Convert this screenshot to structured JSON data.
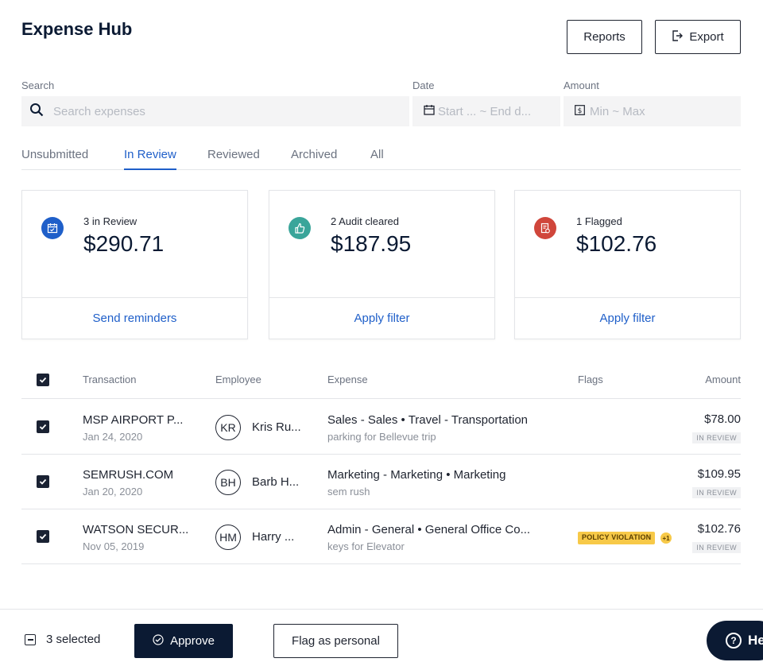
{
  "header": {
    "title": "Expense Hub",
    "reports_label": "Reports",
    "export_label": "Export"
  },
  "filters": {
    "search_label": "Search",
    "search_placeholder": "Search expenses",
    "date_label": "Date",
    "date_placeholder": "Start ... ~ End d...",
    "amount_label": "Amount",
    "amount_placeholder": "Min ~ Max"
  },
  "tabs": [
    {
      "label": "Unsubmitted",
      "active": false
    },
    {
      "label": "In Review",
      "active": true
    },
    {
      "label": "Reviewed",
      "active": false
    },
    {
      "label": "Archived",
      "active": false
    },
    {
      "label": "All",
      "active": false
    }
  ],
  "summary_cards": [
    {
      "caption": "3 in Review",
      "amount": "$290.71",
      "action": "Send reminders",
      "icon": "calendar-check-icon",
      "color": "#1f5fc9"
    },
    {
      "caption": "2 Audit cleared",
      "amount": "$187.95",
      "action": "Apply filter",
      "icon": "thumbs-up-icon",
      "color": "#3aa59a"
    },
    {
      "caption": "1 Flagged",
      "amount": "$102.76",
      "action": "Apply filter",
      "icon": "flagged-receipt-icon",
      "color": "#d0463b"
    }
  ],
  "table": {
    "columns": [
      "Transaction",
      "Employee",
      "Expense",
      "Flags",
      "Amount"
    ],
    "rows": [
      {
        "transaction": "MSP AIRPORT P...",
        "date": "Jan 24, 2020",
        "initials": "KR",
        "employee": "Kris Ru...",
        "expense": "Sales - Sales • Travel - Transportation",
        "note": "parking for Bellevue trip",
        "flag": "",
        "flag_extra": "",
        "amount": "$78.00",
        "status": "IN REVIEW",
        "checked": true
      },
      {
        "transaction": "SEMRUSH.COM",
        "date": "Jan 20, 2020",
        "initials": "BH",
        "employee": "Barb H...",
        "expense": "Marketing - Marketing • Marketing",
        "note": "sem rush",
        "flag": "",
        "flag_extra": "",
        "amount": "$109.95",
        "status": "IN REVIEW",
        "checked": true
      },
      {
        "transaction": "WATSON SECUR...",
        "date": "Nov 05, 2019",
        "initials": "HM",
        "employee": "Harry ...",
        "expense": "Admin - General • General Office Co...",
        "note": "keys for Elevator",
        "flag": "POLICY VIOLATION",
        "flag_extra": "+1",
        "amount": "$102.76",
        "status": "IN REVIEW",
        "checked": true
      }
    ]
  },
  "bottom_bar": {
    "selected_text": "3 selected",
    "approve_label": "Approve",
    "flag_personal_label": "Flag as personal",
    "help_label": "He"
  }
}
